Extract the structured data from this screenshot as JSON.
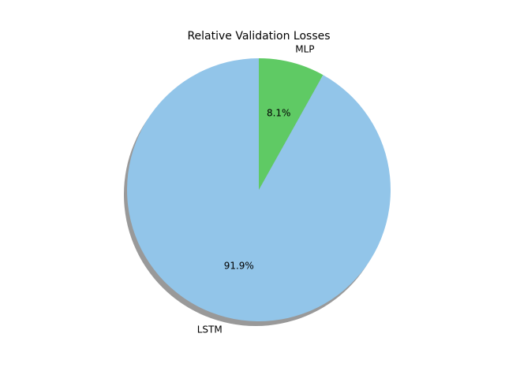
{
  "chart_data": {
    "type": "pie",
    "title": "Relative Validation Losses",
    "slices": [
      {
        "label": "LSTM",
        "value": 91.9,
        "pct_label": "91.9%",
        "color": "#92c5e9"
      },
      {
        "label": "MLP",
        "value": 8.1,
        "pct_label": "8.1%",
        "color": "#5fca64"
      }
    ],
    "start_angle_deg": 90,
    "direction": "counterclockwise",
    "shadow": true,
    "shadow_color": "#999999"
  }
}
